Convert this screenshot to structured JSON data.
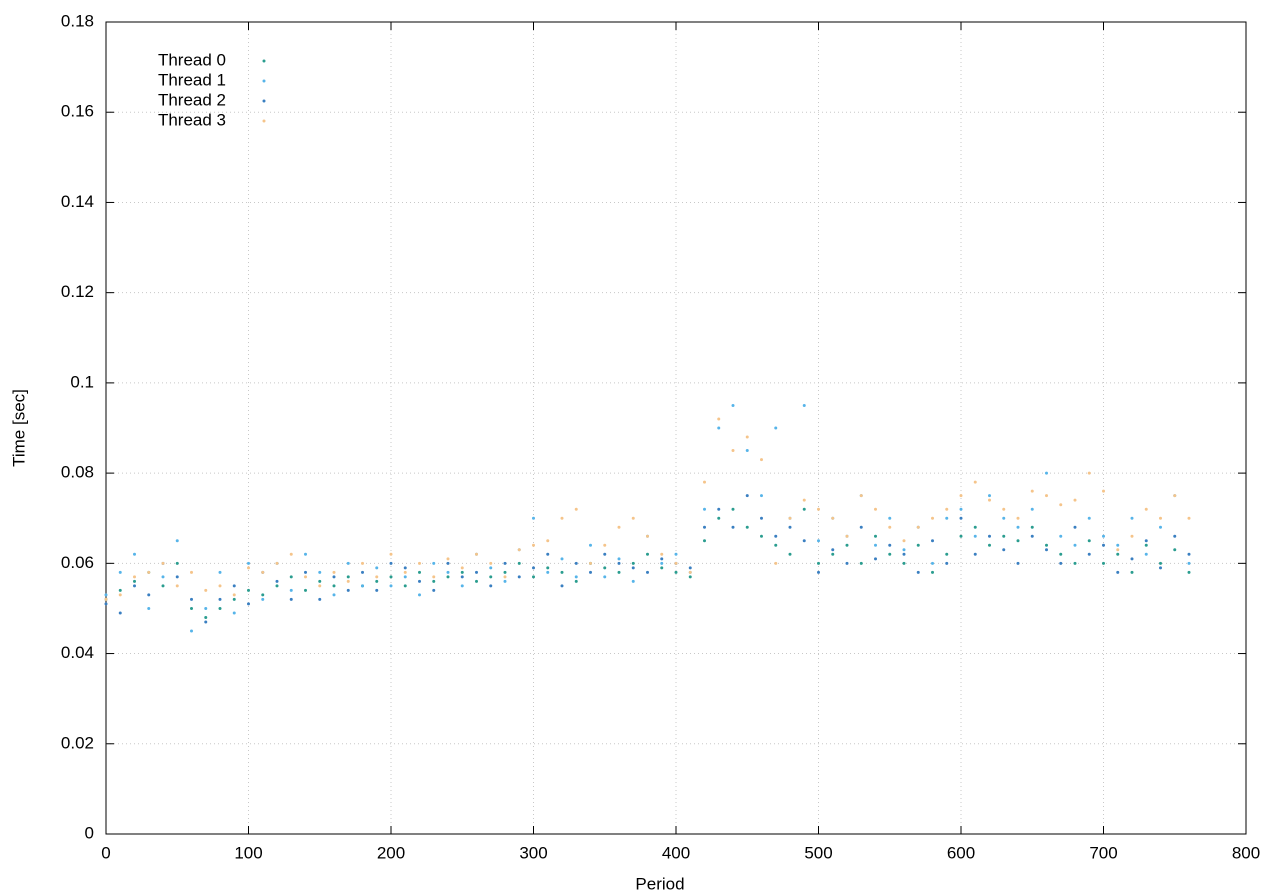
{
  "chart_data": {
    "type": "scatter",
    "x_label": "Period",
    "y_label": "Time [sec]",
    "xlim": [
      0,
      800
    ],
    "ylim": [
      0,
      0.18
    ],
    "xticks": [
      0,
      100,
      200,
      300,
      400,
      500,
      600,
      700,
      800
    ],
    "yticks": [
      0,
      0.02,
      0.04,
      0.06,
      0.08,
      0.1,
      0.12,
      0.14,
      0.16,
      0.18
    ],
    "grid": true,
    "legend": "top-left",
    "x": [
      0,
      10,
      20,
      30,
      40,
      50,
      60,
      70,
      80,
      90,
      100,
      110,
      120,
      130,
      140,
      150,
      160,
      170,
      180,
      190,
      200,
      210,
      220,
      230,
      240,
      250,
      260,
      270,
      280,
      290,
      300,
      310,
      320,
      330,
      340,
      350,
      360,
      370,
      380,
      390,
      400,
      410,
      420,
      430,
      440,
      450,
      460,
      470,
      480,
      490,
      500,
      510,
      520,
      530,
      540,
      550,
      560,
      570,
      580,
      590,
      600,
      610,
      620,
      630,
      640,
      650,
      660,
      670,
      680,
      690,
      700,
      710,
      720,
      730,
      740,
      750,
      760
    ],
    "series": [
      {
        "name": "Thread 0",
        "color": "#2a9d8f",
        "values": [
          0.052,
          0.054,
          0.056,
          0.058,
          0.055,
          0.06,
          0.05,
          0.048,
          0.05,
          0.052,
          0.054,
          0.053,
          0.055,
          0.057,
          0.054,
          0.056,
          0.055,
          0.057,
          0.055,
          0.056,
          0.057,
          0.055,
          0.058,
          0.056,
          0.057,
          0.058,
          0.056,
          0.057,
          0.058,
          0.06,
          0.057,
          0.059,
          0.058,
          0.056,
          0.06,
          0.059,
          0.058,
          0.06,
          0.062,
          0.059,
          0.058,
          0.057,
          0.065,
          0.07,
          0.072,
          0.068,
          0.066,
          0.064,
          0.062,
          0.072,
          0.06,
          0.062,
          0.064,
          0.06,
          0.066,
          0.062,
          0.06,
          0.064,
          0.058,
          0.062,
          0.066,
          0.068,
          0.064,
          0.066,
          0.065,
          0.068,
          0.064,
          0.062,
          0.06,
          0.065,
          0.06,
          0.062,
          0.058,
          0.064,
          0.06,
          0.063,
          0.058
        ]
      },
      {
        "name": "Thread 1",
        "color": "#56b4e9",
        "values": [
          0.053,
          0.058,
          0.062,
          0.05,
          0.057,
          0.065,
          0.045,
          0.05,
          0.058,
          0.049,
          0.06,
          0.052,
          0.06,
          0.054,
          0.062,
          0.058,
          0.053,
          0.06,
          0.055,
          0.059,
          0.055,
          0.057,
          0.053,
          0.06,
          0.058,
          0.055,
          0.062,
          0.059,
          0.056,
          0.063,
          0.07,
          0.058,
          0.061,
          0.057,
          0.064,
          0.057,
          0.061,
          0.056,
          0.066,
          0.06,
          0.062,
          0.058,
          0.072,
          0.09,
          0.095,
          0.085,
          0.075,
          0.09,
          0.07,
          0.095,
          0.065,
          0.07,
          0.066,
          0.075,
          0.064,
          0.07,
          0.063,
          0.068,
          0.06,
          0.07,
          0.072,
          0.066,
          0.075,
          0.07,
          0.068,
          0.072,
          0.08,
          0.066,
          0.064,
          0.07,
          0.066,
          0.064,
          0.07,
          0.062,
          0.068,
          0.075,
          0.06
        ]
      },
      {
        "name": "Thread 2",
        "color": "#3a7fc1",
        "values": [
          0.051,
          0.049,
          0.055,
          0.053,
          0.06,
          0.057,
          0.052,
          0.047,
          0.052,
          0.055,
          0.051,
          0.058,
          0.056,
          0.052,
          0.058,
          0.052,
          0.057,
          0.054,
          0.058,
          0.054,
          0.06,
          0.059,
          0.056,
          0.054,
          0.06,
          0.057,
          0.058,
          0.055,
          0.06,
          0.057,
          0.059,
          0.062,
          0.055,
          0.06,
          0.058,
          0.062,
          0.06,
          0.059,
          0.058,
          0.061,
          0.06,
          0.059,
          0.068,
          0.072,
          0.068,
          0.075,
          0.07,
          0.066,
          0.068,
          0.065,
          0.058,
          0.063,
          0.06,
          0.068,
          0.061,
          0.064,
          0.062,
          0.058,
          0.065,
          0.06,
          0.07,
          0.062,
          0.066,
          0.063,
          0.06,
          0.066,
          0.063,
          0.06,
          0.068,
          0.062,
          0.064,
          0.058,
          0.061,
          0.065,
          0.059,
          0.066,
          0.062
        ]
      },
      {
        "name": "Thread 3",
        "color": "#f5c48a",
        "values": [
          0.052,
          0.053,
          0.057,
          0.058,
          0.06,
          0.055,
          0.058,
          0.054,
          0.055,
          0.053,
          0.059,
          0.058,
          0.06,
          0.062,
          0.057,
          0.055,
          0.058,
          0.056,
          0.06,
          0.057,
          0.062,
          0.058,
          0.06,
          0.057,
          0.061,
          0.059,
          0.062,
          0.06,
          0.057,
          0.063,
          0.064,
          0.065,
          0.07,
          0.072,
          0.06,
          0.064,
          0.068,
          0.07,
          0.066,
          0.062,
          0.06,
          0.058,
          0.078,
          0.092,
          0.085,
          0.088,
          0.083,
          0.06,
          0.07,
          0.074,
          0.072,
          0.07,
          0.066,
          0.075,
          0.072,
          0.068,
          0.065,
          0.068,
          0.07,
          0.072,
          0.075,
          0.078,
          0.074,
          0.072,
          0.07,
          0.076,
          0.075,
          0.073,
          0.074,
          0.08,
          0.076,
          0.063,
          0.066,
          0.072,
          0.07,
          0.075,
          0.07
        ]
      }
    ]
  }
}
